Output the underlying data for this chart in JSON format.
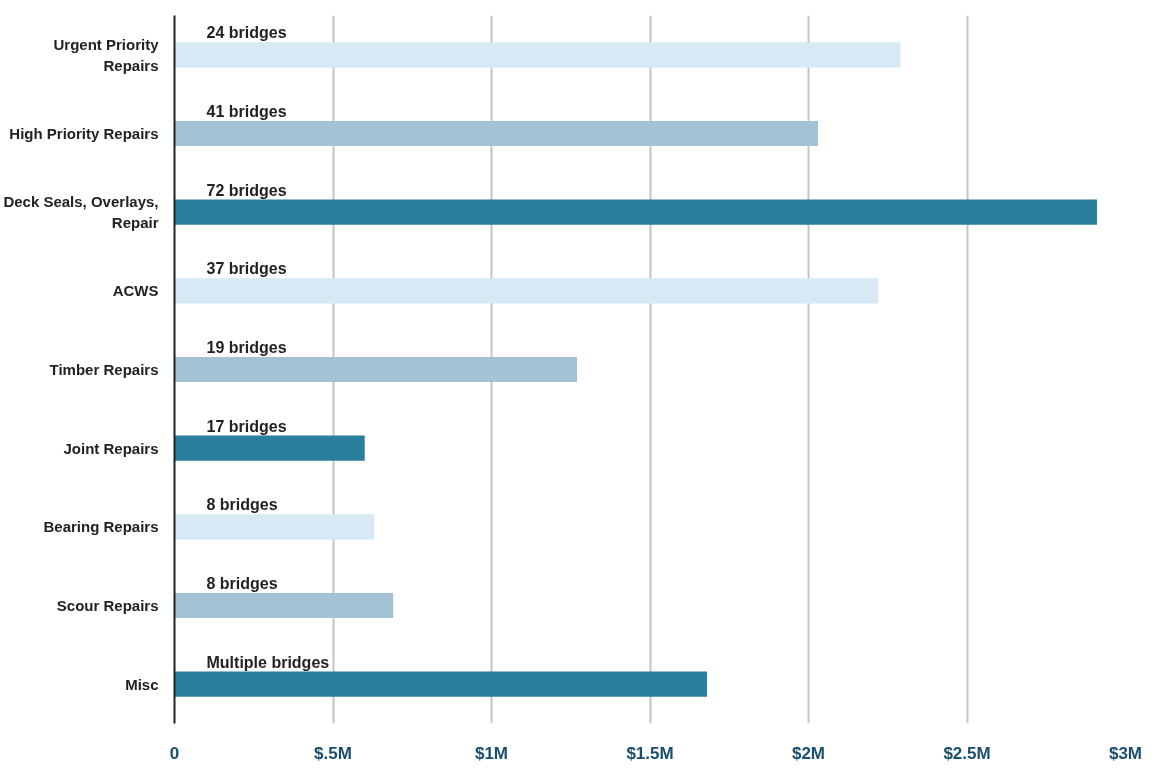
{
  "chart_data": {
    "type": "bar",
    "orientation": "horizontal",
    "categories": [
      "Urgent Priority Repairs",
      "High Priority Repairs",
      "Deck Seals, Overlays, Repair",
      "ACWS",
      "Timber Repairs",
      "Joint Repairs",
      "Bearing Repairs",
      "Scour Repairs",
      "Misc"
    ],
    "values": [
      2.29,
      2.03,
      2.91,
      2.22,
      1.27,
      0.6,
      0.63,
      0.69,
      1.68
    ],
    "colors": [
      "#d6e9f5",
      "#a3c3d5",
      "#2a7f9e",
      "#d6e9f5",
      "#a3c3d5",
      "#2a7f9e",
      "#d6e9f5",
      "#a3c3d5",
      "#2a7f9e"
    ],
    "xlim": [
      0,
      3
    ],
    "xticks": [
      0,
      {
        "value": 0.5,
        "label": "$.5M"
      },
      {
        "value": 1,
        "label": "$1M"
      },
      {
        "value": 1.5,
        "label": "$1.5M"
      },
      {
        "value": 2,
        "label": "$2M"
      },
      {
        "value": 2.5,
        "label": "$2.5M"
      },
      {
        "value": 3,
        "label": "$3M"
      }
    ],
    "grid": "x",
    "annotations": [
      "24 bridges",
      "41 bridges",
      "72 bridges",
      "37 bridges",
      "19 bridges",
      "17 bridges",
      "8 bridges",
      "8 bridges",
      "Multiple bridges"
    ]
  }
}
